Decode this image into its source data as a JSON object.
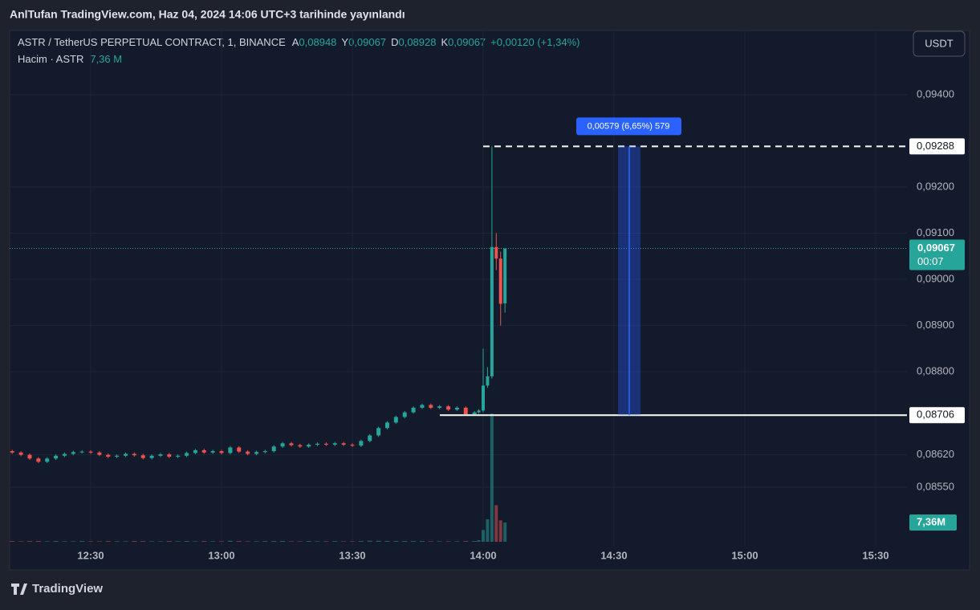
{
  "header": {
    "published": "AnlTufan TradingView.com, Haz 04, 2024 14:06 UTC+3 tarihinde yayınlandı"
  },
  "legend": {
    "symbol": "ASTR / TetherUS PERPETUAL CONTRACT, 1, BINANCE",
    "open_key": "A",
    "open": "0,08948",
    "high_key": "Y",
    "high": "0,09067",
    "low_key": "D",
    "low": "0,08928",
    "close_key": "K",
    "close": "0,09067",
    "change": "+0,00120 (+1,34%)",
    "volume_name": "Hacim · ASTR",
    "volume": "7,36 M"
  },
  "currency": "USDT",
  "footer": "TradingView",
  "chart_data": {
    "type": "candlestick",
    "x": [
      "12:12",
      "12:14",
      "12:16",
      "12:18",
      "12:20",
      "12:22",
      "12:24",
      "12:26",
      "12:28",
      "12:30",
      "12:32",
      "12:34",
      "12:36",
      "12:38",
      "12:40",
      "12:42",
      "12:44",
      "12:46",
      "12:48",
      "12:50",
      "12:52",
      "12:54",
      "12:56",
      "12:58",
      "13:00",
      "13:02",
      "13:04",
      "13:06",
      "13:08",
      "13:10",
      "13:12",
      "13:14",
      "13:16",
      "13:18",
      "13:20",
      "13:22",
      "13:24",
      "13:26",
      "13:28",
      "13:30",
      "13:32",
      "13:34",
      "13:36",
      "13:38",
      "13:40",
      "13:42",
      "13:44",
      "13:46",
      "13:48",
      "13:50",
      "13:52",
      "13:54",
      "13:56",
      "13:58",
      "13:59",
      "14:00",
      "14:01",
      "14:02",
      "14:03",
      "14:04",
      "14:05"
    ],
    "open": [
      0.08628,
      0.08625,
      0.0862,
      0.08612,
      0.08605,
      0.08612,
      0.08618,
      0.08622,
      0.08626,
      0.08627,
      0.08625,
      0.0862,
      0.08616,
      0.08618,
      0.08622,
      0.08619,
      0.08613,
      0.08618,
      0.08621,
      0.08616,
      0.08618,
      0.08624,
      0.0863,
      0.08625,
      0.08628,
      0.08624,
      0.08636,
      0.08627,
      0.08622,
      0.08626,
      0.08628,
      0.08638,
      0.08645,
      0.08641,
      0.08638,
      0.08642,
      0.08644,
      0.08642,
      0.08645,
      0.08642,
      0.0864,
      0.0865,
      0.08662,
      0.08678,
      0.0869,
      0.08702,
      0.08712,
      0.08722,
      0.08728,
      0.08722,
      0.08725,
      0.08718,
      0.08722,
      0.08708,
      0.08712,
      0.08716,
      0.0877,
      0.0879,
      0.0907,
      0.09045,
      0.08948
    ],
    "high": [
      0.08631,
      0.08628,
      0.08623,
      0.08615,
      0.08615,
      0.08621,
      0.08625,
      0.08629,
      0.0863,
      0.0863,
      0.08628,
      0.08623,
      0.08621,
      0.08625,
      0.08625,
      0.08622,
      0.08621,
      0.08624,
      0.08624,
      0.08621,
      0.08627,
      0.08633,
      0.08633,
      0.08631,
      0.08631,
      0.08639,
      0.08639,
      0.0863,
      0.08629,
      0.08631,
      0.08641,
      0.08648,
      0.08648,
      0.08644,
      0.08645,
      0.08647,
      0.08647,
      0.08648,
      0.08648,
      0.08645,
      0.08653,
      0.08665,
      0.08681,
      0.08693,
      0.08705,
      0.08715,
      0.08725,
      0.08731,
      0.08731,
      0.08728,
      0.08728,
      0.08725,
      0.08725,
      0.08715,
      0.08719,
      0.0885,
      0.0881,
      0.09288,
      0.091,
      0.0906,
      0.09067
    ],
    "low": [
      0.08622,
      0.08617,
      0.08609,
      0.08602,
      0.08602,
      0.08609,
      0.08615,
      0.08619,
      0.08623,
      0.08622,
      0.08617,
      0.08613,
      0.08613,
      0.08615,
      0.08616,
      0.0861,
      0.0861,
      0.08615,
      0.08613,
      0.08613,
      0.08615,
      0.08621,
      0.08622,
      0.08622,
      0.08621,
      0.08621,
      0.08624,
      0.08619,
      0.08619,
      0.08623,
      0.08625,
      0.08635,
      0.08638,
      0.08635,
      0.08635,
      0.08639,
      0.08639,
      0.08639,
      0.08639,
      0.08637,
      0.08637,
      0.08647,
      0.08659,
      0.08675,
      0.08687,
      0.08699,
      0.08709,
      0.08719,
      0.08719,
      0.08719,
      0.08715,
      0.08715,
      0.08705,
      0.08705,
      0.08709,
      0.08712,
      0.08765,
      0.08785,
      0.0902,
      0.089,
      0.08928
    ],
    "close": [
      0.08625,
      0.0862,
      0.08612,
      0.08605,
      0.08612,
      0.08618,
      0.08622,
      0.08626,
      0.08627,
      0.08625,
      0.0862,
      0.08616,
      0.08618,
      0.08622,
      0.08619,
      0.08613,
      0.08618,
      0.08621,
      0.08616,
      0.08618,
      0.08624,
      0.0863,
      0.08625,
      0.08628,
      0.08624,
      0.08636,
      0.08627,
      0.08622,
      0.08626,
      0.08628,
      0.08638,
      0.08645,
      0.08641,
      0.08638,
      0.08642,
      0.08644,
      0.08642,
      0.08645,
      0.08642,
      0.0864,
      0.0865,
      0.08662,
      0.08678,
      0.0869,
      0.08702,
      0.08712,
      0.08722,
      0.08728,
      0.08722,
      0.08725,
      0.08718,
      0.08722,
      0.08708,
      0.08712,
      0.08716,
      0.0877,
      0.0879,
      0.0907,
      0.09045,
      0.08947,
      0.09067
    ],
    "volume": [
      0.3,
      0.2,
      0.3,
      0.3,
      0.2,
      0.3,
      0.2,
      0.2,
      0.3,
      0.2,
      0.2,
      0.3,
      0.2,
      0.2,
      0.3,
      0.3,
      0.2,
      0.2,
      0.3,
      0.2,
      0.3,
      0.2,
      0.3,
      0.2,
      0.2,
      0.4,
      0.3,
      0.2,
      0.2,
      0.3,
      0.3,
      0.3,
      0.2,
      0.2,
      0.3,
      0.2,
      0.2,
      0.3,
      0.2,
      0.2,
      0.3,
      0.4,
      0.4,
      0.3,
      0.3,
      0.3,
      0.3,
      0.3,
      0.2,
      0.2,
      0.2,
      0.2,
      0.3,
      0.3,
      0.6,
      4.5,
      8.6,
      49,
      14,
      8.2,
      7.36
    ],
    "volume_label": "7,36M",
    "up_color": "#26a69a",
    "down_color": "#ef5350",
    "ylim": [
      0.08423,
      0.09539
    ],
    "yticks": [
      {
        "value": 0.0855,
        "label": "0,08550"
      },
      {
        "value": 0.0862,
        "label": "0,08620"
      },
      {
        "value": 0.088,
        "label": "0,08800"
      },
      {
        "value": 0.089,
        "label": "0,08900"
      },
      {
        "value": 0.09,
        "label": "0,09000"
      },
      {
        "value": 0.091,
        "label": "0,09100"
      },
      {
        "value": 0.092,
        "label": "0,09200"
      },
      {
        "value": 0.094,
        "label": "0,09400"
      }
    ],
    "xticks": [
      "12:30",
      "13:00",
      "13:30",
      "14:00",
      "14:30",
      "15:00",
      "15:30"
    ],
    "grid": true,
    "last_price": {
      "value": 0.09067,
      "label": "0,09067",
      "countdown": "00:07"
    },
    "hlines": [
      {
        "value": 0.09288,
        "label": "0,09288",
        "style": "dashed"
      },
      {
        "value": 0.08706,
        "label": "0,08706",
        "style": "solid"
      }
    ],
    "measure_label": "0,00579 (6,65%) 579"
  }
}
